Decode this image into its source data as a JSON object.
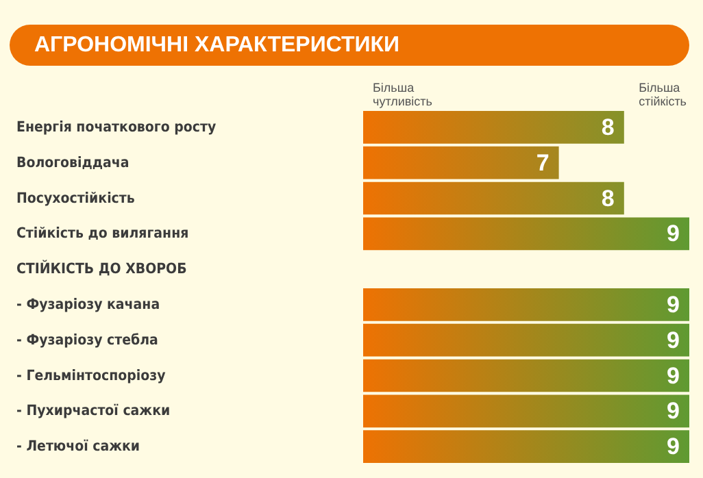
{
  "chart_data": {
    "type": "bar",
    "orientation": "horizontal",
    "title": "АГРОНОМІЧНІ ХАРАКТЕРИСТИКИ",
    "categories": [
      "Енергія початкового росту",
      "Вологовіддача",
      "Посухостійкість",
      "Стійкість до вилягання",
      "СТІЙКІСТЬ ДО ХВОРОБ",
      "- Фузаріозу качана",
      "- Фузаріозу стебла",
      "- Гельмінтоспоріозу",
      "- Пухирчастої сажки",
      "- Летючої сажки"
    ],
    "values": [
      8,
      7,
      8,
      9,
      null,
      9,
      9,
      9,
      9,
      9
    ],
    "colors": [
      "#85922a",
      "#a5871f",
      "#85922a",
      "#5f9a32",
      null,
      "#5f9a32",
      "#5f9a32",
      "#5f9a32",
      "#5f9a32",
      "#5f9a32"
    ],
    "xlim": [
      4,
      9
    ],
    "tick_labels": false,
    "data_labels": true,
    "annotations": [
      "Більша чутливість",
      "Більша стійкість"
    ]
  }
}
